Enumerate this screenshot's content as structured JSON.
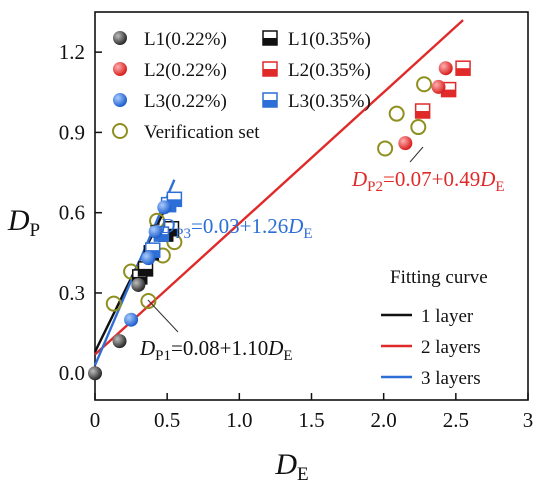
{
  "chart_data": {
    "type": "scatter",
    "xlabel": {
      "main": "D",
      "sub": "E"
    },
    "ylabel": {
      "main": "D",
      "sub": "P"
    },
    "xlim": [
      0,
      3
    ],
    "ylim": [
      -0.1,
      1.35
    ],
    "xticks": [
      0,
      0.5,
      1.0,
      1.5,
      2.0,
      2.5,
      3
    ],
    "xtick_labels": [
      "0",
      "0.5",
      "1.0",
      "1.5",
      "2.0",
      "2.5",
      "3"
    ],
    "yticks": [
      0.0,
      0.3,
      0.6,
      0.9,
      1.2
    ],
    "ytick_labels": [
      "0.0",
      "0.3",
      "0.6",
      "0.9",
      "1.2"
    ],
    "grid": false,
    "legend_position": "top",
    "series": [
      {
        "name": "L1(0.22%)",
        "marker": "sphere",
        "color": "#555555",
        "points": [
          [
            0.0,
            0.0
          ],
          [
            0.17,
            0.12
          ],
          [
            0.3,
            0.33
          ]
        ]
      },
      {
        "name": "L1(0.35%)",
        "marker": "half-square",
        "color": "#111111",
        "points": [
          [
            0.31,
            0.36
          ],
          [
            0.35,
            0.39
          ],
          [
            0.39,
            0.45
          ],
          [
            0.49,
            0.52
          ],
          [
            0.53,
            0.54
          ]
        ]
      },
      {
        "name": "L2(0.22%)",
        "marker": "sphere",
        "color": "#e02a2a",
        "points": [
          [
            2.15,
            0.86
          ],
          [
            2.38,
            1.07
          ],
          [
            2.43,
            1.14
          ]
        ]
      },
      {
        "name": "L2(0.35%)",
        "marker": "half-square",
        "color": "#e02a2a",
        "points": [
          [
            2.27,
            0.98
          ],
          [
            2.45,
            1.06
          ],
          [
            2.55,
            1.14
          ]
        ]
      },
      {
        "name": "L3(0.22%)",
        "marker": "sphere",
        "color": "#2d6fd6",
        "points": [
          [
            0.25,
            0.2
          ],
          [
            0.37,
            0.43
          ],
          [
            0.42,
            0.53
          ],
          [
            0.48,
            0.62
          ]
        ]
      },
      {
        "name": "L3(0.35%)",
        "marker": "half-square",
        "color": "#2d6fd6",
        "points": [
          [
            0.4,
            0.46
          ],
          [
            0.46,
            0.52
          ],
          [
            0.51,
            0.63
          ],
          [
            0.55,
            0.65
          ]
        ]
      },
      {
        "name": "Verification set",
        "marker": "open-circle",
        "color": "#8f8f1f",
        "points": [
          [
            0.13,
            0.26
          ],
          [
            0.25,
            0.38
          ],
          [
            0.37,
            0.27
          ],
          [
            0.43,
            0.57
          ],
          [
            0.47,
            0.44
          ],
          [
            0.55,
            0.49
          ],
          [
            2.01,
            0.84
          ],
          [
            2.09,
            0.97
          ],
          [
            2.24,
            0.92
          ],
          [
            2.28,
            1.08
          ]
        ]
      }
    ],
    "fitting_curve_title": "Fitting curve",
    "fits": [
      {
        "name": "1 layer",
        "color": "#111111",
        "intercept": 0.08,
        "slope": 1.1,
        "x_range": [
          0.0,
          0.53
        ],
        "equation": {
          "lhs_main": "D",
          "lhs_sub": "P1",
          "mid": "=0.08+1.10",
          "rhs_main": "D",
          "rhs_sub": "E"
        }
      },
      {
        "name": "2 layers",
        "color": "#e02a2a",
        "intercept": 0.07,
        "slope": 0.49,
        "x_range": [
          0.0,
          2.55
        ],
        "equation": {
          "lhs_main": "D",
          "lhs_sub": "P2",
          "mid": "=0.07+0.49",
          "rhs_main": "D",
          "rhs_sub": "E"
        }
      },
      {
        "name": "3 layers",
        "color": "#2d6fd6",
        "intercept": 0.03,
        "slope": 1.26,
        "x_range": [
          0.0,
          0.55
        ],
        "equation": {
          "lhs_main": "D",
          "lhs_sub": "P3",
          "mid": "=0.03+1.26",
          "rhs_main": "D",
          "rhs_sub": "E"
        }
      }
    ]
  }
}
